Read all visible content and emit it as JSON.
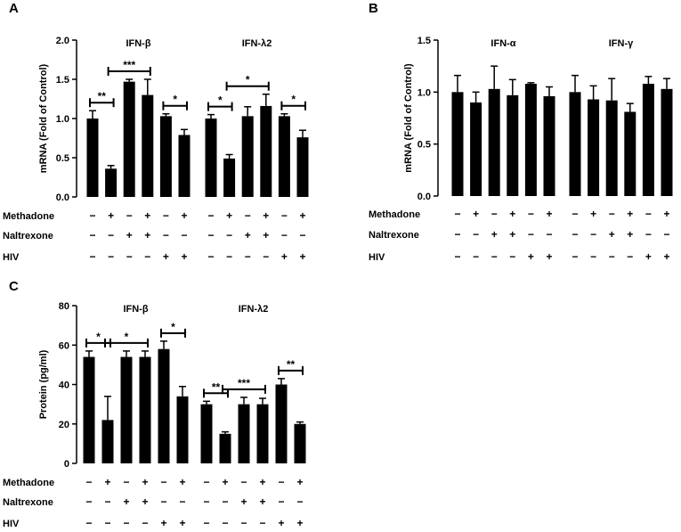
{
  "figure": {
    "row_labels": [
      "Methadone",
      "Naltrexone",
      "HIV"
    ],
    "symbols": {
      "minus": "−",
      "plus": "+"
    },
    "colors": {
      "bar": "#000000",
      "axis": "#000000",
      "background": "#ffffff"
    }
  },
  "chart_data": [
    {
      "panel": "A",
      "type": "bar",
      "ylabel": "mRNA (Fold of Control)",
      "ylim": [
        0,
        2.0
      ],
      "yticks": [
        "0.0",
        "0.5",
        "1.0",
        "1.5",
        "2.0"
      ],
      "yticks_values": [
        0,
        0.5,
        1.0,
        1.5,
        2.0
      ],
      "groups": [
        {
          "title": "IFN-β",
          "values": [
            1.0,
            0.36,
            1.47,
            1.3,
            1.03,
            0.79
          ],
          "errors": [
            0.1,
            0.04,
            0.03,
            0.2,
            0.03,
            0.07
          ],
          "significance": [
            {
              "from": 0,
              "to": 1,
              "label": "**"
            },
            {
              "from": 1,
              "to": 3,
              "label": "***"
            },
            {
              "from": 4,
              "to": 5,
              "label": "*"
            }
          ]
        },
        {
          "title": "IFN-λ2",
          "values": [
            1.0,
            0.49,
            1.03,
            1.16,
            1.03,
            0.76
          ],
          "errors": [
            0.05,
            0.05,
            0.12,
            0.15,
            0.03,
            0.09
          ],
          "significance": [
            {
              "from": 0,
              "to": 1,
              "label": "*"
            },
            {
              "from": 1,
              "to": 3,
              "label": "*"
            },
            {
              "from": 4,
              "to": 5,
              "label": "*"
            }
          ]
        }
      ],
      "treatments": {
        "Methadone": [
          "−",
          "+",
          "−",
          "+",
          "−",
          "+",
          "−",
          "+",
          "−",
          "+",
          "−",
          "+"
        ],
        "Naltrexone": [
          "−",
          "−",
          "+",
          "+",
          "−",
          "−",
          "−",
          "−",
          "+",
          "+",
          "−",
          "−"
        ],
        "HIV": [
          "−",
          "−",
          "−",
          "−",
          "+",
          "+",
          "−",
          "−",
          "−",
          "−",
          "+",
          "+"
        ]
      }
    },
    {
      "panel": "B",
      "type": "bar",
      "ylabel": "mRNA (Fold of Control)",
      "ylim": [
        0,
        1.5
      ],
      "yticks": [
        "0.0",
        "0.5",
        "1.0",
        "1.5"
      ],
      "yticks_values": [
        0,
        0.5,
        1.0,
        1.5
      ],
      "groups": [
        {
          "title": "IFN-α",
          "values": [
            1.0,
            0.9,
            1.03,
            0.97,
            1.08,
            0.96
          ],
          "errors": [
            0.16,
            0.1,
            0.22,
            0.15,
            0.01,
            0.09
          ],
          "significance": []
        },
        {
          "title": "IFN-γ",
          "values": [
            1.0,
            0.93,
            0.92,
            0.81,
            1.08,
            1.03
          ],
          "errors": [
            0.16,
            0.13,
            0.21,
            0.08,
            0.07,
            0.1
          ],
          "significance": []
        }
      ],
      "treatments": {
        "Methadone": [
          "−",
          "+",
          "−",
          "+",
          "−",
          "+",
          "−",
          "+",
          "−",
          "+",
          "−",
          "+"
        ],
        "Naltrexone": [
          "−",
          "−",
          "+",
          "+",
          "−",
          "−",
          "−",
          "−",
          "+",
          "+",
          "−",
          "−"
        ],
        "HIV": [
          "−",
          "−",
          "−",
          "−",
          "+",
          "+",
          "−",
          "−",
          "−",
          "−",
          "+",
          "+"
        ]
      }
    },
    {
      "panel": "C",
      "type": "bar",
      "ylabel": "Protein (pg/ml)",
      "ylim": [
        0,
        80
      ],
      "yticks": [
        "0",
        "20",
        "40",
        "60",
        "80"
      ],
      "yticks_values": [
        0,
        20,
        40,
        60,
        80
      ],
      "groups": [
        {
          "title": "IFN-β",
          "values": [
            54,
            22,
            54,
            54,
            58,
            34
          ],
          "errors": [
            3,
            12,
            3,
            3,
            4,
            5
          ],
          "significance": [
            {
              "from": 0,
              "to": 1,
              "label": "*"
            },
            {
              "from": 1,
              "to": 3,
              "label": "*"
            },
            {
              "from": 4,
              "to": 5,
              "label": "*"
            }
          ]
        },
        {
          "title": "IFN-λ2",
          "values": [
            30,
            15,
            30,
            30,
            40,
            20
          ],
          "errors": [
            1.5,
            1,
            3.5,
            3,
            3,
            1
          ],
          "significance": [
            {
              "from": 0,
              "to": 1,
              "label": "**"
            },
            {
              "from": 1,
              "to": 3,
              "label": "***"
            },
            {
              "from": 4,
              "to": 5,
              "label": "**"
            }
          ]
        }
      ],
      "treatments": {
        "Methadone": [
          "−",
          "+",
          "−",
          "+",
          "−",
          "+",
          "−",
          "+",
          "−",
          "+",
          "−",
          "+"
        ],
        "Naltrexone": [
          "−",
          "−",
          "+",
          "+",
          "−",
          "−",
          "−",
          "−",
          "+",
          "+",
          "−",
          "−"
        ],
        "HIV": [
          "−",
          "−",
          "−",
          "−",
          "+",
          "+",
          "−",
          "−",
          "−",
          "−",
          "+",
          "+"
        ]
      }
    }
  ]
}
